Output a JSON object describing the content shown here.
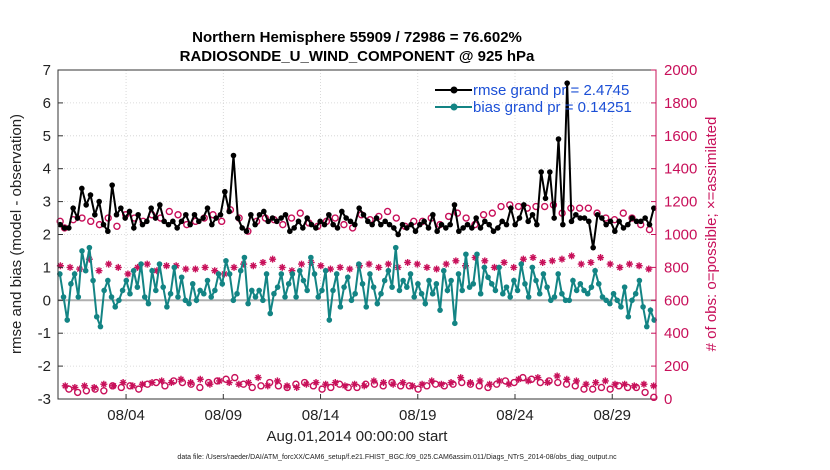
{
  "chart_data": {
    "type": "line",
    "title": "Northern Hemisphere 55909 / 72986 = 76.602%",
    "subtitle": "RADIOSONDE_U_WIND_COMPONENT @ 925 hPa",
    "xlabel": "Aug.01,2014 00:00:00 start",
    "ylabel_left": "rmse and bias (model - observation)",
    "ylabel_right": "# of obs: o=possible; ×=assimilated",
    "footnote": "data file: /Users/raeder/DAI/ATM_forcXX/CAM6_setup/f.e21.FHIST_BGC.f09_025.CAM6assim.011/Diags_NTrS_2014-08/obs_diag_output.nc",
    "x_range": [
      0.5,
      31.25
    ],
    "ylim_left": [
      -3,
      7
    ],
    "ylim_right": [
      0,
      2000
    ],
    "left_ticks": [
      -3,
      -2,
      -1,
      0,
      1,
      2,
      3,
      4,
      5,
      6,
      7
    ],
    "right_ticks": [
      0,
      200,
      400,
      600,
      800,
      1000,
      1200,
      1400,
      1600,
      1800,
      2000
    ],
    "x_ticks": [
      {
        "day": 4,
        "label": "08/04"
      },
      {
        "day": 9,
        "label": "08/09"
      },
      {
        "day": 14,
        "label": "08/14"
      },
      {
        "day": 19,
        "label": "08/19"
      },
      {
        "day": 24,
        "label": "08/24"
      },
      {
        "day": 29,
        "label": "08/29"
      }
    ],
    "colors": {
      "rmse": "#000000",
      "bias": "#138484",
      "obs": "#c8105a",
      "zero_line": "#b0b0b0",
      "legend_text": "#1b4fd6"
    },
    "series": [
      {
        "name": "rmse grand pr = 2.4745",
        "key": "rmse",
        "axis": "left",
        "values": [
          2.3,
          2.2,
          2.2,
          2.8,
          2.5,
          3.4,
          2.9,
          3.2,
          2.6,
          3.0,
          2.3,
          2.1,
          3.5,
          2.6,
          2.8,
          2.5,
          2.7,
          2.2,
          2.6,
          2.3,
          2.4,
          2.8,
          2.5,
          2.9,
          2.4,
          2.3,
          2.4,
          2.2,
          2.4,
          2.6,
          2.3,
          2.6,
          2.4,
          2.5,
          2.8,
          2.3,
          2.5,
          2.6,
          3.3,
          2.7,
          4.4,
          2.5,
          2.2,
          2.1,
          2.6,
          2.3,
          2.6,
          2.7,
          2.4,
          2.5,
          2.4,
          2.5,
          2.6,
          2.1,
          2.2,
          2.4,
          2.2,
          2.5,
          2.3,
          2.2,
          2.4,
          2.3,
          2.6,
          2.3,
          2.2,
          2.7,
          2.5,
          2.4,
          2.3,
          2.8,
          2.6,
          2.4,
          2.3,
          2.5,
          2.3,
          2.4,
          2.3,
          2.2,
          2.0,
          2.3,
          2.2,
          2.3,
          2.1,
          2.3,
          2.4,
          2.2,
          2.6,
          2.1,
          2.3,
          2.2,
          2.3,
          2.9,
          2.1,
          2.2,
          2.3,
          2.2,
          2.5,
          2.2,
          2.4,
          2.3,
          2.1,
          2.2,
          2.4,
          2.3,
          2.8,
          2.3,
          2.5,
          2.9,
          2.4,
          2.6,
          2.3,
          3.9,
          3.1,
          3.9,
          2.5,
          4.9,
          2.3,
          6.6,
          2.4,
          2.6,
          2.5,
          2.5,
          2.4,
          1.6,
          2.6,
          2.5,
          2.3,
          2.4,
          2.1,
          2.4,
          2.2,
          2.3,
          2.5,
          2.4,
          2.4,
          2.5,
          2.3,
          2.8
        ]
      },
      {
        "name": "bias grand pr = 0.14251",
        "key": "bias",
        "axis": "left",
        "values": [
          0.8,
          0.1,
          -0.6,
          0.5,
          0.8,
          0.1,
          1.5,
          0.9,
          1.6,
          0.6,
          -0.5,
          -0.8,
          0.3,
          0.6,
          0.1,
          -0.2,
          0.0,
          0.3,
          0.6,
          0.2,
          0.9,
          0.4,
          1.1,
          0.1,
          -0.1,
          0.9,
          0.3,
          1.1,
          0.4,
          -0.2,
          0.2,
          1.0,
          0.1,
          0.7,
          0.0,
          -0.1,
          0.5,
          0.0,
          0.3,
          0.2,
          0.6,
          0.1,
          0.3,
          0.8,
          0.5,
          1.2,
          0.8,
          0.0,
          0.2,
          0.9,
          1.3,
          -0.1,
          0.3,
          0.1,
          0.3,
          0.0,
          0.8,
          -0.4,
          0.2,
          0.4,
          0.8,
          0.1,
          0.5,
          0.8,
          0.1,
          0.9,
          0.6,
          0.3,
          1.3,
          0.8,
          0.1,
          0.3,
          0.9,
          -0.6,
          0.3,
          0.8,
          -0.2,
          0.4,
          0.7,
          0.0,
          0.2,
          1.1,
          0.5,
          -0.2,
          0.8,
          0.4,
          -0.1,
          0.2,
          0.6,
          0.9,
          0.4,
          1.6,
          0.3,
          0.6,
          0.4,
          0.8,
          0.1,
          0.5,
          0.2,
          -0.1,
          0.6,
          0.2,
          0.5,
          -0.3,
          0.9,
          0.3,
          0.6,
          -0.7,
          0.8,
          0.3,
          1.4,
          0.4,
          0.5,
          1.4,
          0.2,
          1.0,
          0.7,
          0.5,
          0.3,
          1.0,
          0.2,
          0.4,
          0.1,
          0.6,
          0.3,
          1.1,
          0.5,
          0.1,
          1.0,
          0.6,
          0.2,
          0.8,
          0.4,
          0.0,
          0.1,
          0.8,
          0.2,
          0.0,
          0.0,
          0.6,
          0.3,
          0.5,
          0.3,
          0.2,
          0.4,
          0.9,
          0.5,
          0.1,
          0.0,
          -0.1,
          0.2,
          0.0,
          -0.2,
          0.4,
          -0.5,
          0.0,
          0.2,
          0.6,
          -0.2,
          -0.8,
          -0.3,
          -0.6
        ]
      },
      {
        "name": "possible",
        "key": "possible",
        "axis": "right",
        "values": [
          1080,
          1040,
          60,
          1090,
          40,
          1100,
          50,
          1080,
          60,
          1060,
          50,
          1100,
          80,
          1050,
          70,
          1120,
          80,
          1100,
          60,
          1080,
          90,
          1120,
          100,
          1100,
          80,
          1140,
          110,
          1120,
          100,
          1060,
          90,
          1080,
          70,
          1100,
          100,
          1120,
          110,
          1080,
          120,
          1150,
          130,
          1100,
          90,
          1020,
          70,
          1080,
          80,
          1100,
          100,
          1090,
          80,
          1060,
          70,
          1100,
          90,
          1130,
          100,
          1070,
          80,
          1050,
          60,
          1080,
          70,
          1100,
          90,
          1060,
          70,
          1040,
          70,
          1120,
          90,
          1090,
          90,
          1110,
          80,
          1140,
          100,
          1100,
          80,
          1050,
          80,
          1080,
          60,
          1080,
          80,
          1100,
          90,
          1060,
          80,
          1110,
          90,
          1130,
          100,
          1100,
          90,
          1060,
          80,
          1120,
          70,
          1130,
          90,
          1170,
          110,
          1180,
          100,
          1170,
          130,
          1160,
          120,
          1170,
          100,
          1170,
          110,
          1180,
          100,
          1130,
          90,
          1160,
          80,
          1160,
          60,
          1160,
          60,
          1130,
          70,
          1100,
          60,
          1090,
          80,
          1130,
          70,
          1100,
          70,
          1060,
          40,
          1030,
          10
        ]
      },
      {
        "name": "assimilated",
        "key": "assimilated",
        "axis": "right",
        "values": [
          810,
          80,
          800,
          70,
          790,
          80,
          850,
          70,
          780,
          90,
          820,
          80,
          800,
          100,
          760,
          80,
          800,
          90,
          820,
          100,
          780,
          110,
          810,
          100,
          810,
          120,
          790,
          100,
          790,
          120,
          800,
          90,
          780,
          110,
          760,
          100,
          800,
          90,
          820,
          100,
          810,
          130,
          830,
          80,
          850,
          110,
          800,
          80,
          780,
          70,
          820,
          90,
          830,
          100,
          810,
          90,
          790,
          100,
          800,
          80,
          790,
          90,
          810,
          80,
          820,
          110,
          800,
          100,
          820,
          90,
          800,
          100,
          830,
          80,
          820,
          90,
          800,
          110,
          790,
          90,
          820,
          100,
          840,
          130,
          810,
          100,
          860,
          110,
          840,
          90,
          800,
          110,
          830,
          90,
          800,
          120,
          850,
          110,
          860,
          130,
          830,
          100,
          840,
          140,
          850,
          120,
          870,
          110,
          820,
          90,
          830,
          100,
          860,
          110,
          820,
          90,
          800,
          90,
          820,
          80,
          810,
          90,
          790,
          80
        ]
      }
    ]
  }
}
